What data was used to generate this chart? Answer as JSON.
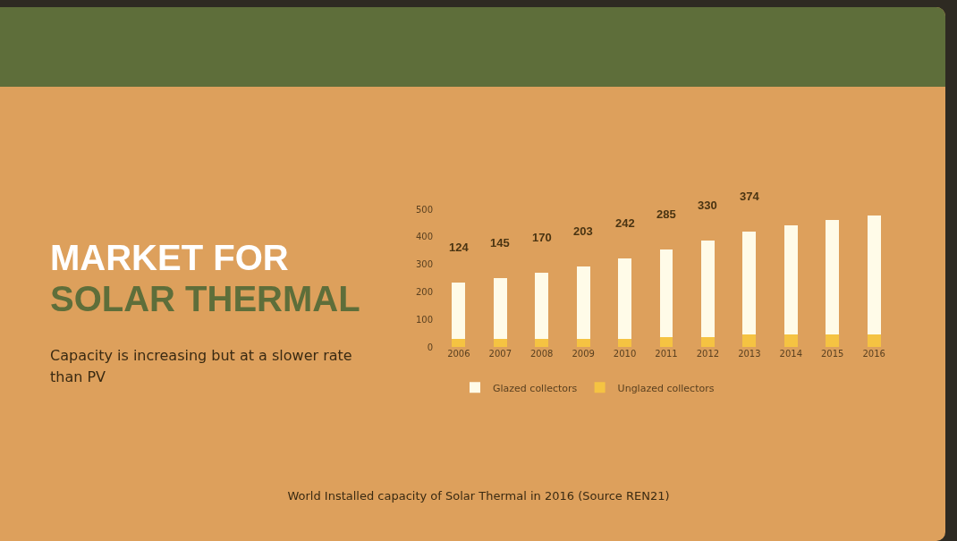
{
  "chart_data": {
    "type": "bar",
    "title": "MARKET FOR\nSOLAR THERMAL",
    "subtitle": "Capacity is increasing but at a slower rate than PV",
    "categories": [
      "2006",
      "2007",
      "2008",
      "2009",
      "2010",
      "2011",
      "2012",
      "2013",
      "2014",
      "2015",
      "2016"
    ],
    "stacked": true,
    "series": [
      {
        "name": "Unglazed collectors",
        "color": "#f5c342",
        "values": [
          28,
          28,
          28,
          28,
          28,
          37,
          37,
          46,
          46,
          46,
          46
        ]
      },
      {
        "name": "Glazed collectors",
        "color": "#fffbe8",
        "values": [
          205,
          221,
          240,
          264,
          294,
          316,
          351,
          372,
          397,
          416,
          432
        ]
      }
    ],
    "ylim": [
      0,
      500
    ],
    "yticks": [
      0,
      100,
      200,
      300,
      400,
      500
    ],
    "grid": false,
    "legend": "bottom",
    "annotations": [
      "124",
      "145",
      "170",
      "203",
      "242",
      "285",
      "330",
      "374",
      "World Installed capacity of Solar Thermal in 2016 (Source REN21)"
    ]
  }
}
